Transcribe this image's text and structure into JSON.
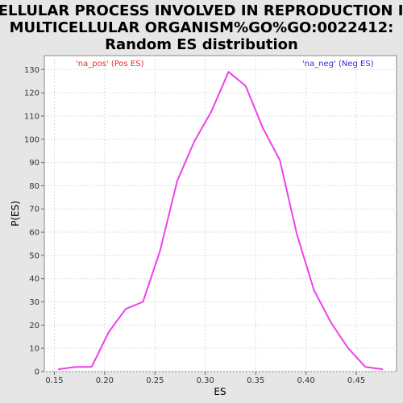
{
  "chart_data": {
    "type": "line",
    "title_lines": [
      "CELLULAR PROCESS INVOLVED IN REPRODUCTION IN",
      "MULTICELLULAR ORGANISM%GO%GO:0022412:",
      "Random ES distribution"
    ],
    "xlabel": "ES",
    "ylabel": "P(ES)",
    "xlim": [
      0.14,
      0.49
    ],
    "ylim": [
      0,
      136
    ],
    "xticks": [
      0.15,
      0.2,
      0.25,
      0.3,
      0.35,
      0.4,
      0.45
    ],
    "xtick_labels": [
      "0.15",
      "0.20",
      "0.25",
      "0.30",
      "0.35",
      "0.40",
      "0.45"
    ],
    "yticks": [
      0,
      10,
      20,
      30,
      40,
      50,
      60,
      70,
      80,
      90,
      100,
      110,
      120,
      130
    ],
    "ytick_labels": [
      "0",
      "10",
      "20",
      "30",
      "40",
      "50",
      "60",
      "70",
      "80",
      "90",
      "100",
      "110",
      "120",
      "130"
    ],
    "grid": true,
    "legend": [
      {
        "label": "'na_pos' (Pos ES)",
        "color": "#e03030",
        "placement": "top-left"
      },
      {
        "label": "'na_neg' (Neg ES)",
        "color": "#3030d0",
        "placement": "top-right"
      }
    ],
    "series": [
      {
        "color": "#ee40ee",
        "x": [
          0.154,
          0.171,
          0.187,
          0.204,
          0.221,
          0.238,
          0.255,
          0.272,
          0.289,
          0.306,
          0.323,
          0.34,
          0.357,
          0.374,
          0.391,
          0.408,
          0.425,
          0.442,
          0.459,
          0.476
        ],
        "y": [
          1,
          2,
          2,
          17,
          27,
          30,
          52,
          82,
          99,
          112,
          129,
          123,
          105,
          91,
          59,
          35,
          21,
          10,
          2,
          1
        ]
      }
    ]
  }
}
